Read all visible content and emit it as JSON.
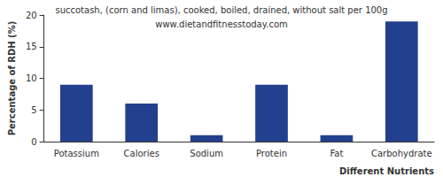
{
  "chart_data": {
    "type": "bar",
    "title": "succotash, (corn and limas), cooked, boiled, drained, without salt per 100g",
    "subtitle": "www.dietandfitnesstoday.com",
    "x_label": "Different Nutrients",
    "y_label": "Percentage of RDH (%)",
    "categories": [
      "Potassium",
      "Calories",
      "Sodium",
      "Protein",
      "Fat",
      "Carbohydrate"
    ],
    "values": [
      9,
      6,
      1,
      9,
      1,
      19
    ],
    "color": "#23408e",
    "ylim": [
      0,
      20
    ],
    "yticks": [
      0,
      5,
      10,
      15,
      20
    ],
    "grid": false
  }
}
